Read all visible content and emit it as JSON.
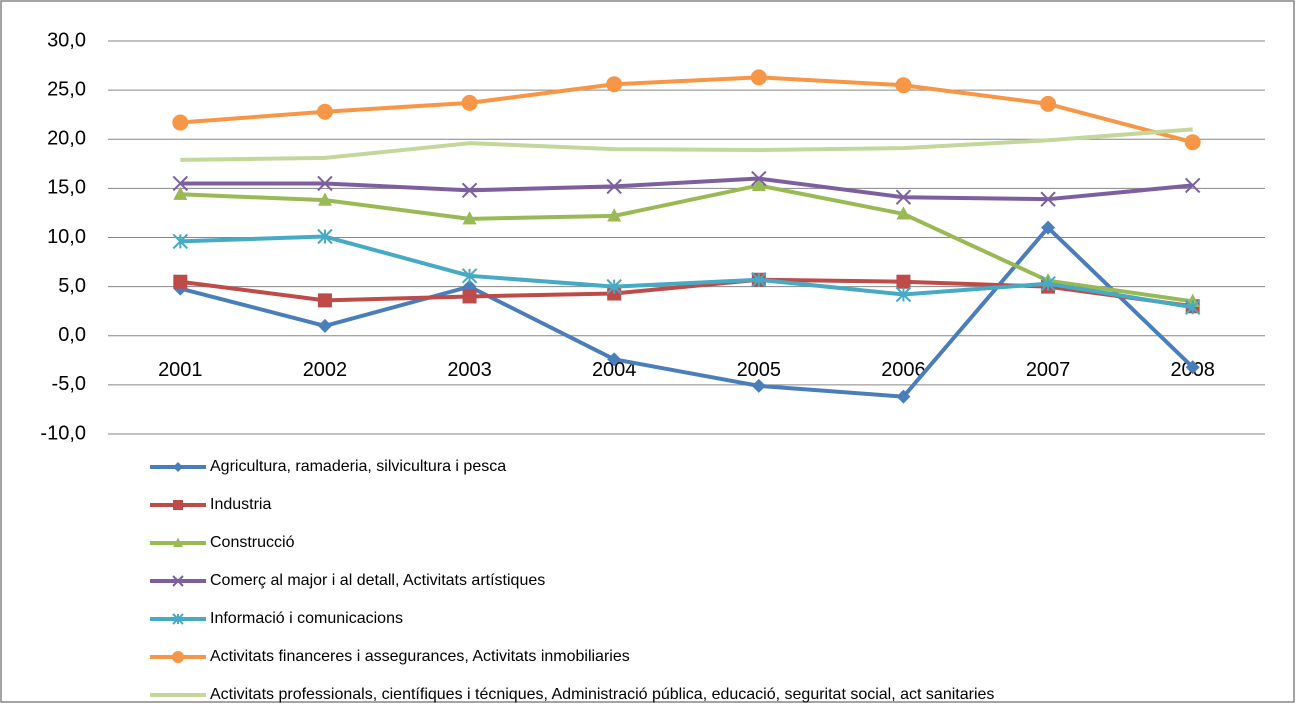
{
  "chart_data": {
    "type": "line",
    "categories": [
      "2001",
      "2002",
      "2003",
      "2004",
      "2005",
      "2006",
      "2007",
      "2008"
    ],
    "series": [
      {
        "name": "Agricultura, ramaderia, silvicultura i pesca",
        "color": "#4a7ebb",
        "marker": "diamond",
        "values": [
          4.8,
          1.0,
          5.0,
          -2.4,
          -5.1,
          -6.2,
          11.0,
          -3.2
        ]
      },
      {
        "name": "Industria",
        "color": "#be4b48",
        "marker": "square",
        "values": [
          5.5,
          3.6,
          4.0,
          4.3,
          5.7,
          5.5,
          5.0,
          3.0
        ]
      },
      {
        "name": "Construcció",
        "color": "#98b954",
        "marker": "triangle",
        "values": [
          14.4,
          13.8,
          11.9,
          12.2,
          15.3,
          12.4,
          5.6,
          3.5
        ]
      },
      {
        "name": "Comerç al major i al detall, Activitats artístiques",
        "color": "#7d5fa0",
        "marker": "x",
        "values": [
          15.5,
          15.5,
          14.8,
          15.2,
          16.0,
          14.1,
          13.9,
          15.3
        ]
      },
      {
        "name": "Informació i comunicacions",
        "color": "#46aac5",
        "marker": "star",
        "values": [
          9.6,
          10.1,
          6.1,
          5.0,
          5.7,
          4.2,
          5.3,
          2.9
        ]
      },
      {
        "name": "Activitats financeres i assegurances, Activitats inmobiliaries",
        "color": "#f79646",
        "marker": "circle",
        "values": [
          21.7,
          22.8,
          23.7,
          25.6,
          26.3,
          25.5,
          23.6,
          19.7
        ]
      },
      {
        "name": "Activitats professionals, científiques i técniques, Administració pública, educació, seguritat social, act sanitaries",
        "color": "#c3d69b",
        "marker": "none",
        "values": [
          17.9,
          18.1,
          19.6,
          19.0,
          18.9,
          19.1,
          19.9,
          21.0
        ]
      }
    ],
    "ylim": [
      -10,
      30
    ],
    "yticks": [
      {
        "value": -10,
        "label": "-10,0"
      },
      {
        "value": -5,
        "label": "-5,0"
      },
      {
        "value": 0,
        "label": "0,0"
      },
      {
        "value": 5,
        "label": "5,0"
      },
      {
        "value": 10,
        "label": "10,0"
      },
      {
        "value": 15,
        "label": "15,0"
      },
      {
        "value": 20,
        "label": "20,0"
      },
      {
        "value": 25,
        "label": "25,0"
      },
      {
        "value": 30,
        "label": "30,0"
      }
    ],
    "grid": true,
    "legend": "bottom"
  }
}
